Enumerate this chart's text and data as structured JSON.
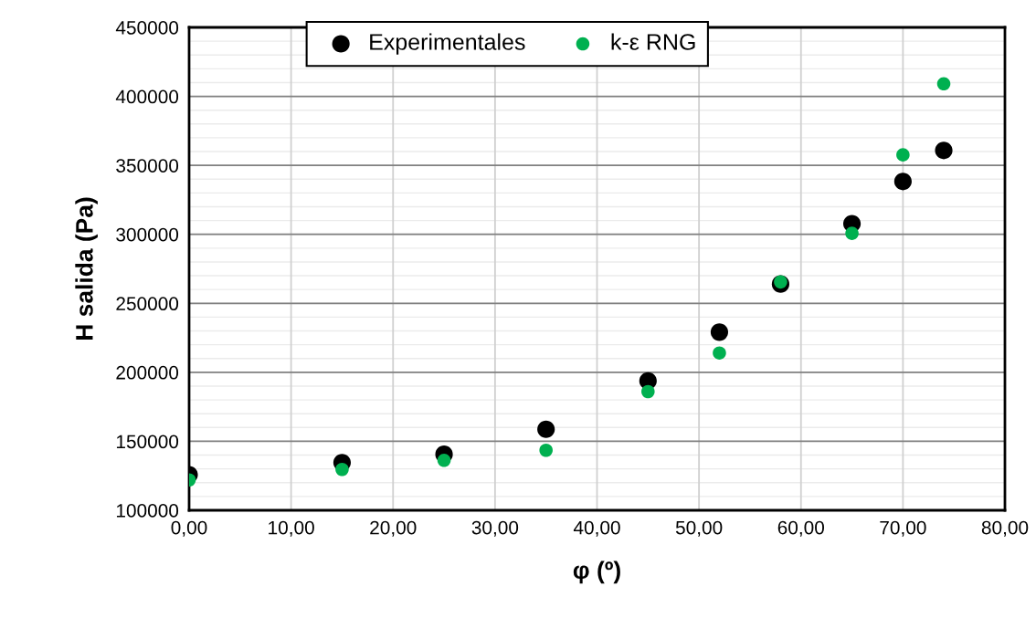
{
  "chart_data": {
    "type": "scatter",
    "xlabel": "φ (º)",
    "ylabel": "H salida (Pa)",
    "xlim": [
      0,
      80
    ],
    "ylim": [
      100000,
      450000
    ],
    "xticks": [
      {
        "value": 0,
        "label": "0,00"
      },
      {
        "value": 10,
        "label": "10,00"
      },
      {
        "value": 20,
        "label": "20,00"
      },
      {
        "value": 30,
        "label": "30,00"
      },
      {
        "value": 40,
        "label": "40,00"
      },
      {
        "value": 50,
        "label": "50,00"
      },
      {
        "value": 60,
        "label": "60,00"
      },
      {
        "value": 70,
        "label": "70,00"
      },
      {
        "value": 80,
        "label": "80,00"
      }
    ],
    "yticks": [
      100000,
      150000,
      200000,
      250000,
      300000,
      350000,
      400000,
      450000
    ],
    "grid": true,
    "legend": "top",
    "marker": "circle",
    "series": [
      {
        "name": "Experimentales",
        "color": "#000000",
        "x": [
          0,
          15,
          25,
          35,
          45,
          52,
          58,
          65,
          70,
          74
        ],
        "values": [
          125800,
          134600,
          140600,
          158700,
          193800,
          229100,
          264000,
          307700,
          338300,
          360800
        ]
      },
      {
        "name": "k-ε RNG",
        "color": "#00b050",
        "x": [
          0,
          15,
          25,
          35,
          45,
          52,
          58,
          65,
          70,
          74
        ],
        "values": [
          122000,
          129600,
          136200,
          143500,
          186000,
          214000,
          265500,
          300700,
          357600,
          409100
        ]
      }
    ]
  }
}
